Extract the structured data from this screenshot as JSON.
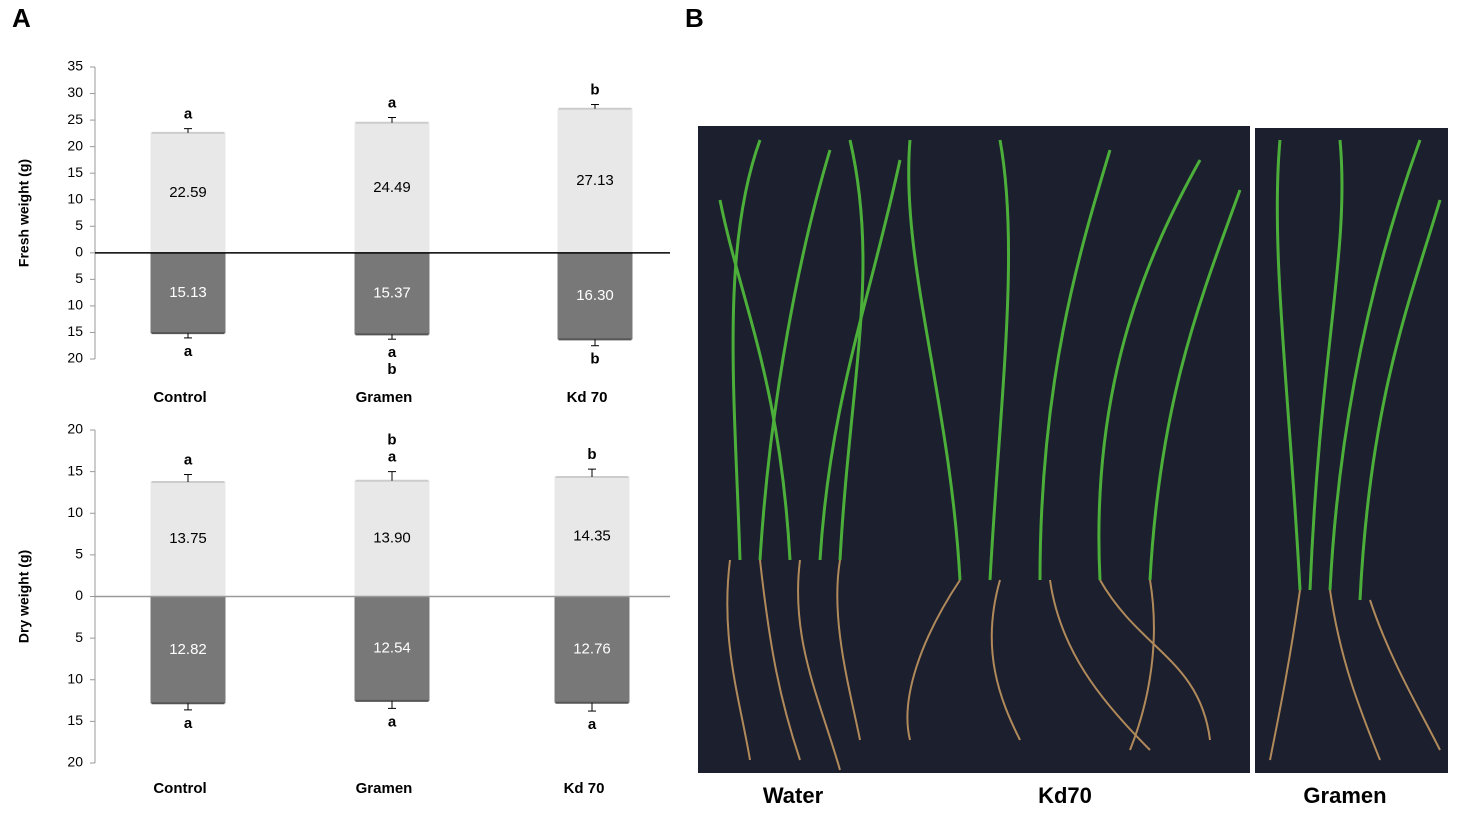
{
  "panels": [
    "A",
    "B"
  ],
  "chart_data": [
    {
      "type": "bar",
      "ylabel": "Fresh weight (g)",
      "categories": [
        "Control",
        "Gramen",
        "Kd 70"
      ],
      "ylim": [
        -20,
        35
      ],
      "yticks": [
        35,
        30,
        25,
        20,
        15,
        10,
        5,
        0,
        {
          "value": -5,
          "label": "5"
        },
        {
          "value": -10,
          "label": "10"
        },
        {
          "value": -15,
          "label": "15"
        },
        {
          "value": -20,
          "label": "20"
        }
      ],
      "zero_line": "#000000",
      "series": [
        {
          "color": "#e8e8e8",
          "direction": "up",
          "values": [
            22.59,
            24.49,
            27.13
          ],
          "value_labels": [
            "22.59",
            "24.49",
            "27.13"
          ],
          "errors": [
            0.8,
            1.0,
            0.8
          ],
          "letters": [
            [
              "a"
            ],
            [
              "a"
            ],
            [
              "b"
            ]
          ]
        },
        {
          "color": "#787878",
          "direction": "down",
          "values": [
            15.13,
            15.37,
            16.3
          ],
          "value_labels": [
            "15.13",
            "15.37",
            "16.30"
          ],
          "errors": [
            0.9,
            0.9,
            1.2
          ],
          "letters": [
            [
              "a"
            ],
            [
              "a",
              "b"
            ],
            [
              "b"
            ]
          ]
        }
      ]
    },
    {
      "type": "bar",
      "ylabel": "Dry  weight (g)",
      "categories": [
        "Control",
        "Gramen",
        "Kd 70"
      ],
      "ylim": [
        -20,
        20
      ],
      "yticks": [
        20,
        15,
        10,
        5,
        0,
        {
          "value": -5,
          "label": "5"
        },
        {
          "value": -10,
          "label": "10"
        },
        {
          "value": -15,
          "label": "15"
        },
        {
          "value": -20,
          "label": "20"
        }
      ],
      "zero_line": "#999999",
      "series": [
        {
          "color": "#e8e8e8",
          "direction": "up",
          "values": [
            13.75,
            13.9,
            14.35
          ],
          "value_labels": [
            "13.75",
            "13.90",
            "14.35"
          ],
          "errors": [
            0.9,
            1.1,
            0.95
          ],
          "letters": [
            [
              "a"
            ],
            [
              "b",
              "a"
            ],
            [
              "b"
            ]
          ]
        },
        {
          "color": "#787878",
          "direction": "down",
          "values": [
            12.82,
            12.54,
            12.76
          ],
          "value_labels": [
            "12.82",
            "12.54",
            "12.76"
          ],
          "errors": [
            0.8,
            0.9,
            1.0
          ],
          "letters": [
            [
              "a"
            ],
            [
              "a"
            ],
            [
              "a"
            ]
          ]
        }
      ]
    }
  ],
  "photo": {
    "labels": [
      "Water",
      "Kd70",
      "Gramen"
    ]
  }
}
